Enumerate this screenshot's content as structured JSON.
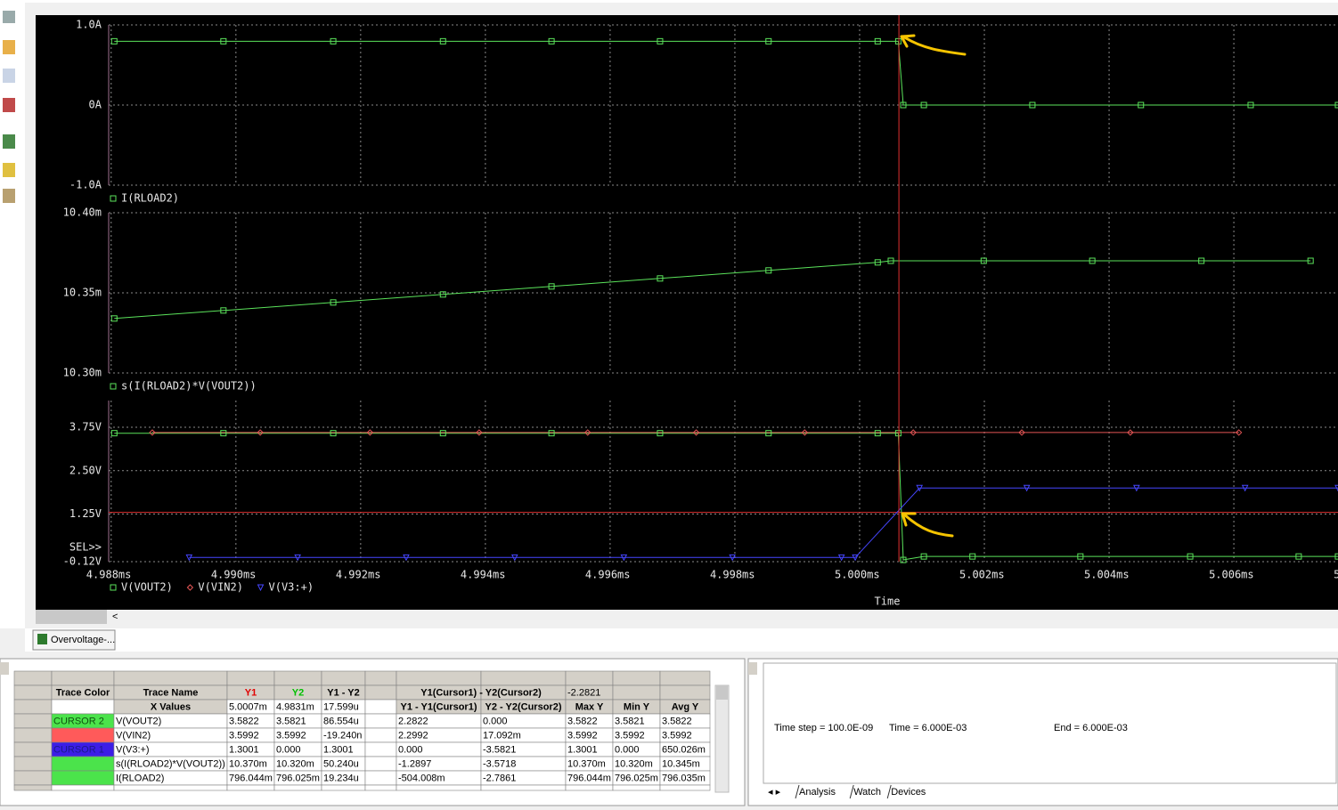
{
  "probe": {
    "x_axis": {
      "title": "Time",
      "xlim": [
        4.98796,
        5.00767
      ],
      "xticks": [
        {
          "value": 4.988,
          "label": "4.988ms"
        },
        {
          "value": 4.99,
          "label": "4.990ms"
        },
        {
          "value": 4.992,
          "label": "4.992ms"
        },
        {
          "value": 4.994,
          "label": "4.994ms"
        },
        {
          "value": 4.996,
          "label": "4.996ms"
        },
        {
          "value": 4.998,
          "label": "4.998ms"
        },
        {
          "value": 5.0,
          "label": "5.000ms"
        },
        {
          "value": 5.002,
          "label": "5.002ms"
        },
        {
          "value": 5.004,
          "label": "5.004ms"
        },
        {
          "value": 5.006,
          "label": "5.006ms"
        },
        {
          "value": 5.008,
          "label": "5"
        }
      ],
      "cursor_x": 5.00063
    },
    "plots": [
      {
        "type": "line",
        "ylim": [
          -1,
          1
        ],
        "yticks": [
          {
            "value": -1,
            "label": "-1.0A"
          },
          {
            "value": 0,
            "label": "0A"
          },
          {
            "value": 1,
            "label": "1.0A"
          }
        ],
        "series": [
          {
            "name": "I(RLOAD2)",
            "color": "#5be35b",
            "marker": "square",
            "x": [
              4.98805,
              4.9898,
              4.99156,
              4.99332,
              4.99506,
              4.9968,
              4.99854,
              5.00029,
              5.00062,
              5.0007,
              5.00103,
              5.00277,
              5.00451,
              5.00627,
              5.00767
            ],
            "values": [
              0.796,
              0.796,
              0.796,
              0.796,
              0.796,
              0.796,
              0.796,
              0.796,
              0.796,
              0,
              0,
              0,
              0,
              0,
              0
            ]
          }
        ]
      },
      {
        "type": "line",
        "ylim": [
          10.3,
          10.4
        ],
        "yticks": [
          {
            "value": 10.3,
            "label": "10.30m"
          },
          {
            "value": 10.35,
            "label": "10.35m"
          },
          {
            "value": 10.4,
            "label": "10.40m"
          }
        ],
        "series": [
          {
            "name": "s(I(RLOAD2)*V(VOUT2))",
            "color": "#5be35b",
            "marker": "square",
            "x": [
              4.98805,
              4.9898,
              4.99156,
              4.99332,
              4.99506,
              4.9968,
              4.99854,
              5.00029,
              5.0005,
              5.00199,
              5.00373,
              5.00548,
              5.00723
            ],
            "values": [
              10.334,
              10.339,
              10.344,
              10.349,
              10.354,
              10.359,
              10.364,
              10.369,
              10.37,
              10.37,
              10.37,
              10.37,
              10.37
            ]
          }
        ]
      },
      {
        "type": "line",
        "ylim": [
          -0.12,
          4.52
        ],
        "yticks": [
          {
            "value": -0.12,
            "label": "-0.12V"
          },
          {
            "value": 1.25,
            "label": "1.25V"
          },
          {
            "value": 2.5,
            "label": "2.50V"
          },
          {
            "value": 3.75,
            "label": "3.75V"
          }
        ],
        "sel_label": "SEL>>",
        "cursor_y": 1.3001,
        "series": [
          {
            "name": "V(VOUT2)",
            "color": "#5be35b",
            "marker": "square",
            "x": [
              4.98805,
              4.9898,
              4.99156,
              4.99332,
              4.99506,
              4.9968,
              4.99854,
              5.00029,
              5.00062,
              5.0007,
              5.00103,
              5.00181,
              5.00354,
              5.0053,
              5.00704,
              5.00767
            ],
            "values": [
              3.58,
              3.58,
              3.58,
              3.58,
              3.58,
              3.58,
              3.58,
              3.58,
              3.58,
              -0.07,
              0.03,
              0.03,
              0.03,
              0.03,
              0.03,
              0.03
            ]
          },
          {
            "name": "V(VIN2)",
            "color": "#e35555",
            "marker": "diamond",
            "x": [
              4.98866,
              4.99039,
              4.99215,
              4.9939,
              4.99564,
              4.99738,
              4.99912,
              5.00086,
              5.0026,
              5.00434,
              5.00608
            ],
            "values": [
              3.5992,
              3.5992,
              3.5992,
              3.5992,
              3.5992,
              3.5992,
              3.5992,
              3.5992,
              3.5992,
              3.5992,
              3.5992
            ]
          },
          {
            "name": "V(V3:+)",
            "color": "#4646ff",
            "marker": "triangle",
            "x": [
              4.98925,
              4.99099,
              4.99273,
              4.99447,
              4.99622,
              4.99796,
              4.99971,
              4.99993,
              5.00096,
              5.00268,
              5.00444,
              5.00618,
              5.00767
            ],
            "values": [
              0,
              0,
              0,
              0,
              0,
              0,
              0,
              0,
              2.0,
              2.0,
              2.0,
              2.0,
              2.0
            ]
          }
        ]
      }
    ]
  },
  "window_tab": "Overvoltage-...",
  "table": {
    "header": {
      "trace_color": "Trace Color",
      "trace_name": "Trace Name",
      "y1": "Y1",
      "y2": "Y2",
      "diff": "Y1 - Y2",
      "cursor_diff": "Y1(Cursor1) - Y2(Cursor2)",
      "cursor_diff_value": "-2.2821"
    },
    "x_row": {
      "label": "X Values",
      "values": [
        "5.0007m",
        "4.9831m",
        "17.599u"
      ],
      "columns": [
        "Y1 - Y1(Cursor1)",
        "Y2 - Y2(Cursor2)",
        "Max Y",
        "Min Y",
        "Avg Y"
      ]
    },
    "rows": [
      {
        "label": "CURSOR 2",
        "color": "#4be34b",
        "name": "V(VOUT2)",
        "values": [
          "3.5822",
          "3.5821",
          "86.554u",
          "2.2822",
          "0.000",
          "3.5822",
          "3.5821",
          "3.5822"
        ]
      },
      {
        "color": "#ff5a5a",
        "name": "V(VIN2)",
        "values": [
          "3.5992",
          "3.5992",
          "-19.240n",
          "2.2992",
          "17.092m",
          "3.5992",
          "3.5992",
          "3.5992"
        ]
      },
      {
        "label": "CURSOR 1",
        "color": "#3c1ee6",
        "name": "V(V3:+)",
        "values": [
          "1.3001",
          "0.000",
          "1.3001",
          "0.000",
          "-3.5821",
          "1.3001",
          "0.000",
          "650.026m"
        ]
      },
      {
        "color": "#4be34b",
        "name": "s(I(RLOAD2)*V(VOUT2))",
        "values": [
          "10.370m",
          "10.320m",
          "50.240u",
          "-1.2897",
          "-3.5718",
          "10.370m",
          "10.320m",
          "10.345m"
        ]
      },
      {
        "color": "#4be34b",
        "name": "I(RLOAD2)",
        "values": [
          "796.044m",
          "796.025m",
          "19.234u",
          "-504.008m",
          "-2.7861",
          "796.044m",
          "796.025m",
          "796.035m"
        ]
      }
    ]
  },
  "status": {
    "time_step": "Time step =  100.0E-09",
    "time": "Time =  6.000E-03",
    "end": "End =  6.000E-03"
  },
  "tabs": [
    "Analysis",
    "Watch",
    "Devices"
  ]
}
